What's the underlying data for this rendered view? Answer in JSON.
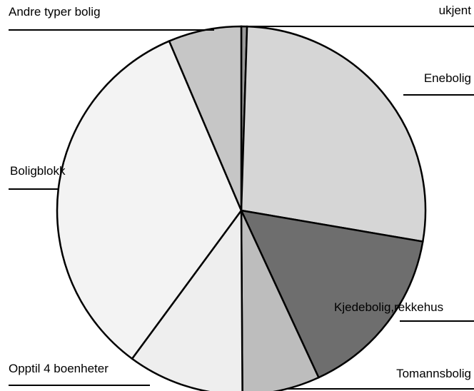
{
  "chart_data": {
    "type": "pie",
    "categories": [
      "ukjent",
      "Enebolig",
      "Kjedebolig,rekkehus",
      "Tomannsbolig",
      "Opptil 4 boenheter",
      "Boligblokk",
      "Andre typer bolig"
    ],
    "values": [
      0.5,
      27.2,
      15.4,
      6.8,
      10.2,
      33.5,
      6.4
    ],
    "colors": [
      "#9a9a9a",
      "#d6d6d6",
      "#6e6e6e",
      "#bdbdbd",
      "#eeeeee",
      "#f3f3f3",
      "#c6c6c6"
    ]
  }
}
